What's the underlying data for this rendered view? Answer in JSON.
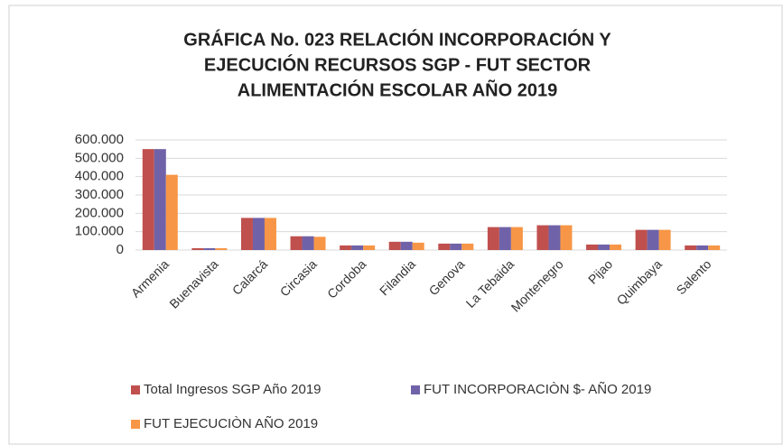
{
  "chart_data": {
    "type": "bar",
    "title": [
      "GRÁFICA No. 023 RELACIÓN INCORPORACIÓN  Y",
      "EJECUCIÓN RECURSOS SGP - FUT SECTOR",
      "ALIMENTACIÓN  ESCOLAR AÑO 2019"
    ],
    "categories": [
      "Armenia",
      "Buenavista",
      "Calarcá",
      "Circasia",
      "Cordoba",
      "Filandia",
      "Genova",
      "La Tebaida",
      "Montenegro",
      "Pijao",
      "Quimbaya",
      "Salento"
    ],
    "series": [
      {
        "name": "Total Ingresos SGP Año 2019",
        "color": "#c0504d",
        "values": [
          550000,
          10000,
          175000,
          75000,
          25000,
          45000,
          35000,
          125000,
          135000,
          30000,
          110000,
          25000
        ]
      },
      {
        "name": "FUT INCORPORACIÒN $- AÑO 2019",
        "color": "#7062a8",
        "values": [
          550000,
          10000,
          175000,
          75000,
          25000,
          45000,
          35000,
          125000,
          135000,
          30000,
          110000,
          25000
        ]
      },
      {
        "name": "FUT EJECUCIÒN AÑO 2019",
        "color": "#f79646",
        "values": [
          410000,
          10000,
          175000,
          72000,
          25000,
          40000,
          35000,
          125000,
          135000,
          30000,
          110000,
          25000
        ]
      }
    ],
    "ylim": [
      0,
      600000
    ],
    "yticks": [
      0,
      {
        "value": 100000,
        "label": "100.000"
      },
      {
        "value": 200000,
        "label": "200.000"
      },
      {
        "value": 300000,
        "label": "300.000"
      },
      {
        "value": 400000,
        "label": "400.000"
      },
      {
        "value": 500000,
        "label": "500.000"
      },
      {
        "value": 600000,
        "label": "600.000"
      }
    ],
    "grid": true
  }
}
